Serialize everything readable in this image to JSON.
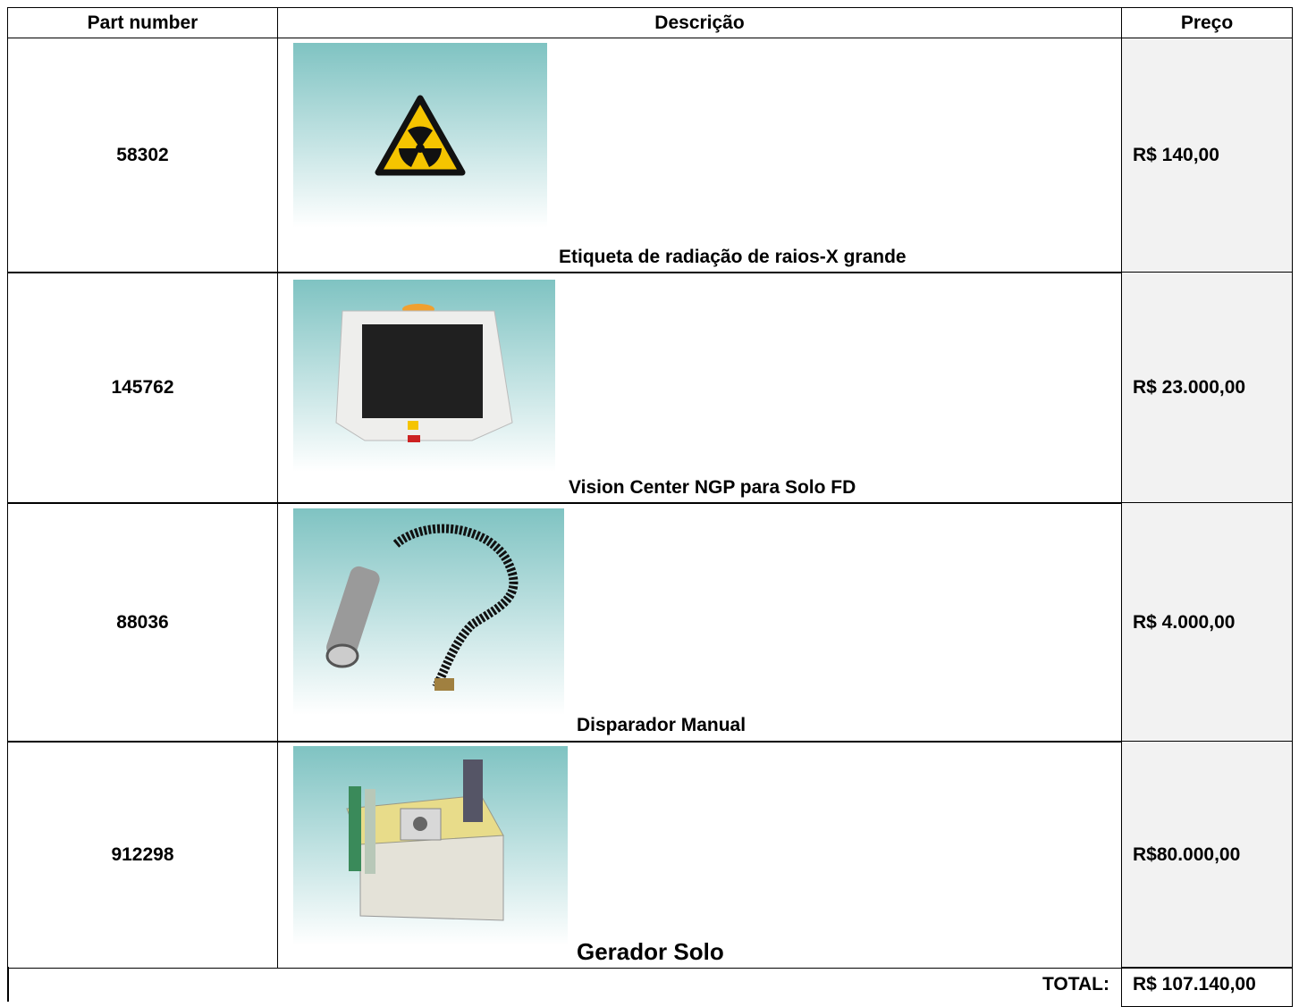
{
  "table": {
    "header": [
      "Part number",
      "Descrição",
      "Preço"
    ],
    "rows": [
      {
        "part": "58302",
        "description": "Etiqueta de radiação de raios-X grande",
        "price": "R$ 140,00"
      },
      {
        "part": "145762",
        "description": "Vision Center NGP para Solo FD",
        "price": "R$ 23.000,00"
      },
      {
        "part": "88036",
        "description": "Disparador Manual",
        "price": "R$ 4.000,00"
      },
      {
        "part": "912298",
        "description": "Gerador Solo",
        "price": "R$80.000,00"
      }
    ],
    "total": {
      "label": "TOTAL:",
      "value": "R$ 107.140,00"
    }
  }
}
